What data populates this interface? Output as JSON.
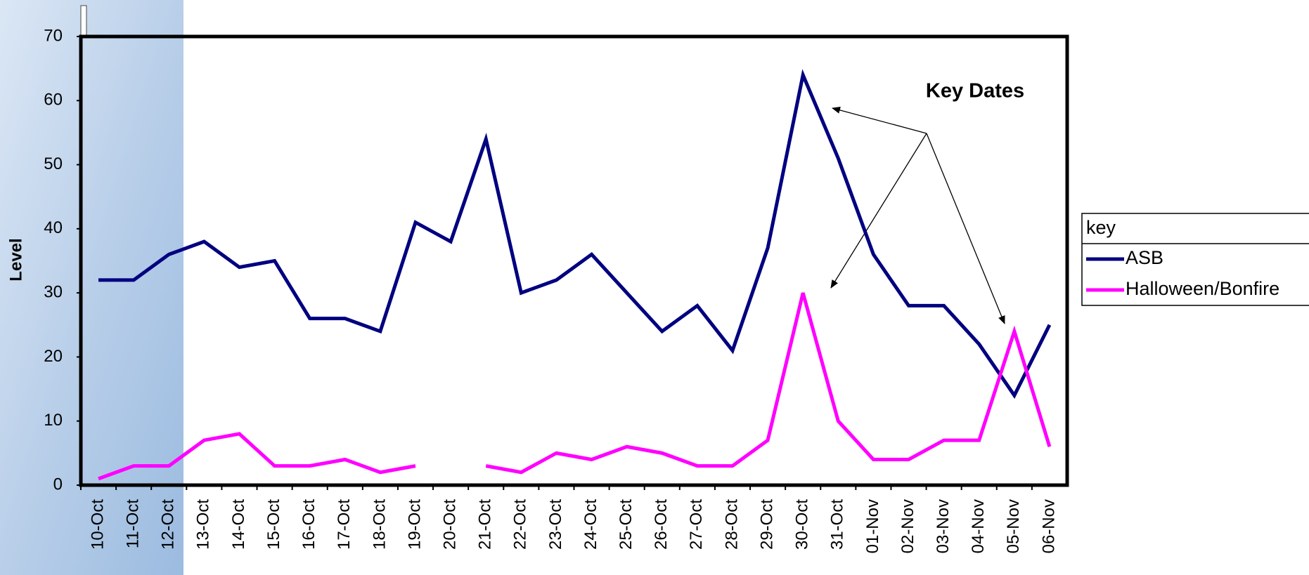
{
  "chart_data": {
    "type": "line",
    "annotation": "Key Dates",
    "y_label": "Level",
    "legend_title": "key",
    "legend": "right",
    "categories": [
      "10-Oct",
      "11-Oct",
      "12-Oct",
      "13-Oct",
      "14-Oct",
      "15-Oct",
      "16-Oct",
      "17-Oct",
      "18-Oct",
      "19-Oct",
      "20-Oct",
      "21-Oct",
      "22-Oct",
      "23-Oct",
      "24-Oct",
      "25-Oct",
      "26-Oct",
      "27-Oct",
      "28-Oct",
      "29-Oct",
      "30-Oct",
      "31-Oct",
      "01-Nov",
      "02-Nov",
      "03-Nov",
      "04-Nov",
      "05-Nov",
      "06-Nov"
    ],
    "series": [
      {
        "name": "ASB",
        "color": "#000080",
        "values": [
          32,
          32,
          36,
          38,
          34,
          35,
          26,
          26,
          24,
          41,
          38,
          54,
          30,
          32,
          36,
          30,
          24,
          28,
          21,
          37,
          64,
          51,
          36,
          28,
          28,
          22,
          14,
          25
        ]
      },
      {
        "name": "Halloween/Bonfire",
        "color": "#ff00ff",
        "values": [
          1,
          3,
          3,
          7,
          8,
          3,
          3,
          4,
          2,
          3,
          null,
          3,
          2,
          5,
          4,
          6,
          5,
          3,
          3,
          7,
          30,
          10,
          4,
          4,
          7,
          7,
          24,
          6
        ]
      }
    ],
    "ylim": [
      0,
      70
    ],
    "yticks": [
      0,
      10,
      20,
      30,
      40,
      50,
      60,
      70
    ]
  }
}
